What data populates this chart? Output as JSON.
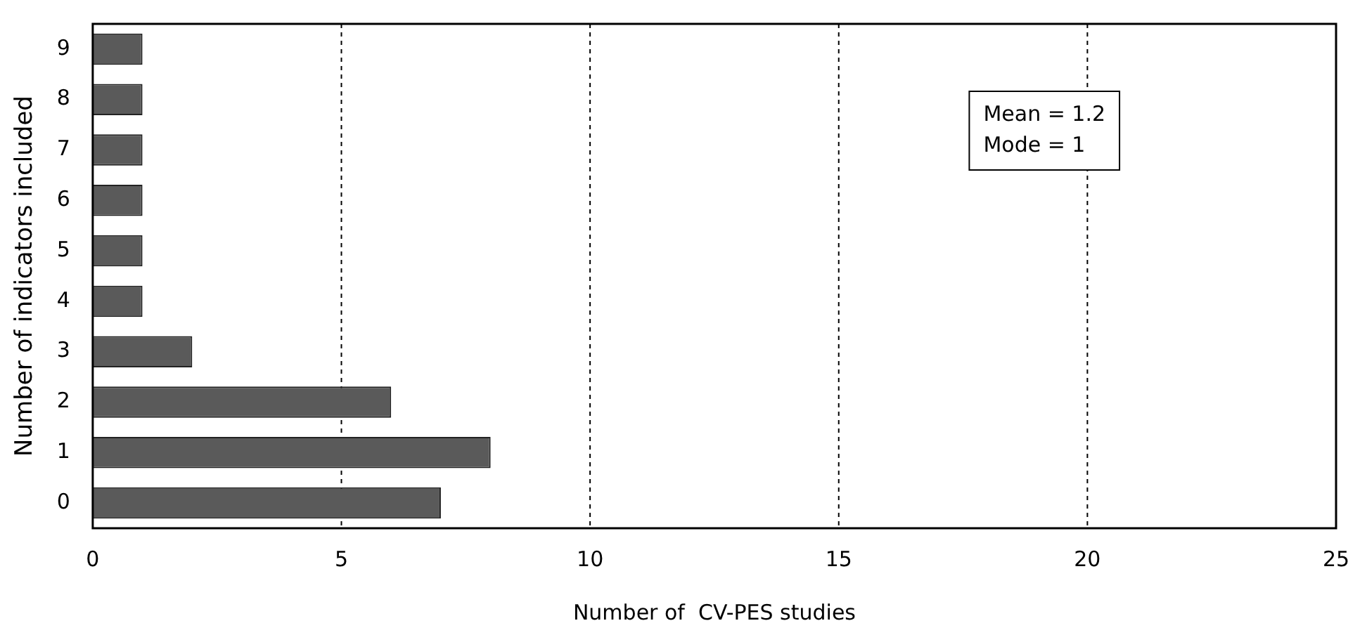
{
  "chart_data": {
    "type": "bar",
    "orientation": "horizontal",
    "xlabel": "Number of  CV-PES studies",
    "ylabel": "Number of indicators included",
    "categories": [
      "9",
      "8",
      "7",
      "6",
      "5",
      "4",
      "3",
      "2",
      "1",
      "0"
    ],
    "values": [
      1,
      1,
      1,
      1,
      1,
      1,
      2,
      6,
      8,
      7
    ],
    "color": "#5a5a5a",
    "xlim": [
      0,
      25
    ],
    "xticks": [
      0,
      5,
      10,
      15,
      20,
      25
    ],
    "grid": "x",
    "legend": false,
    "annotations": [
      "Mean = 1.2",
      "Mode = 1"
    ]
  }
}
